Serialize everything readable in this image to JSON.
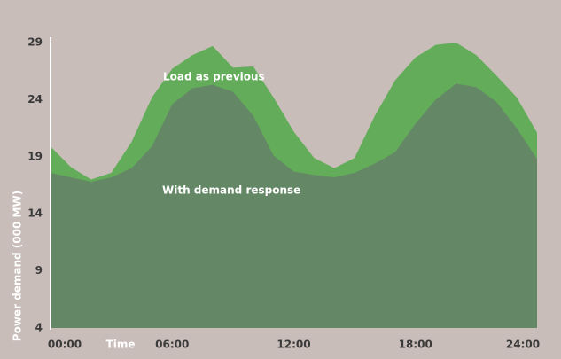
{
  "chart_data": {
    "type": "area",
    "x_label": "Time",
    "y_label": "Power demand (000 MW)",
    "x": [
      0,
      1,
      2,
      3,
      4,
      5,
      6,
      7,
      8,
      9,
      10,
      11,
      12,
      13,
      14,
      15,
      16,
      17,
      18,
      19,
      20,
      21,
      22,
      23,
      24
    ],
    "series": [
      {
        "name": "Load as previous",
        "color": "#63ad5a",
        "values": [
          19.9,
          18.1,
          17.0,
          17.6,
          20.3,
          24.2,
          26.7,
          27.9,
          28.7,
          26.8,
          26.9,
          24.2,
          21.2,
          18.9,
          18.0,
          18.9,
          22.6,
          25.7,
          27.7,
          28.8,
          29.0,
          27.9,
          26.1,
          24.2,
          21.1
        ]
      },
      {
        "name": "With demand response",
        "color": "#648866",
        "values": [
          17.6,
          17.2,
          16.8,
          17.2,
          18.0,
          19.9,
          23.6,
          25.0,
          25.3,
          24.7,
          22.6,
          19.1,
          17.7,
          17.4,
          17.2,
          17.6,
          18.4,
          19.4,
          21.9,
          24.0,
          25.4,
          25.1,
          23.8,
          21.5,
          18.8
        ]
      }
    ],
    "xlim": [
      0,
      24
    ],
    "xticks": [
      {
        "value": 0,
        "label": "00:00"
      },
      {
        "value": 6,
        "label": "06:00"
      },
      {
        "value": 12,
        "label": "12:00"
      },
      {
        "value": 18,
        "label": "18:00"
      },
      {
        "value": 24,
        "label": "24:00"
      }
    ],
    "ylim": [
      4,
      29
    ],
    "yticks": [
      4,
      9,
      14,
      19,
      24,
      29
    ]
  }
}
